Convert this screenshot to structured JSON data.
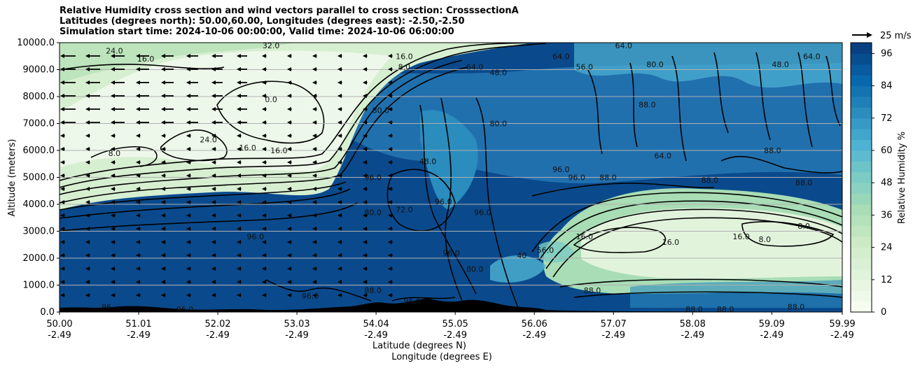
{
  "chart_data": {
    "type": "heatmap",
    "title": [
      "Relative Humidity cross section and wind vectors parallel to cross section: CrosssectionA",
      "Latitudes (degrees north): 50.00,60.00, Longitudes (degrees east): -2.50,-2.50",
      "Simulation start time: 2024-10-06 00:00:00, Valid time: 2024-10-06 06:00:00"
    ],
    "ylabel": "Altitude (meters)",
    "xlabel": [
      "Latitude (degrees N)",
      "Longitude (degrees E)"
    ],
    "ylim": [
      0,
      10000
    ],
    "yticks": [
      "0.0",
      "1000.0",
      "2000.0",
      "3000.0",
      "4000.0",
      "5000.0",
      "6000.0",
      "7000.0",
      "8000.0",
      "9000.0",
      "10000.0"
    ],
    "xlim": [
      50.0,
      59.99
    ],
    "xticks": [
      {
        "lat": "50.00",
        "lon": "-2.49"
      },
      {
        "lat": "51.01",
        "lon": "-2.49"
      },
      {
        "lat": "52.02",
        "lon": "-2.49"
      },
      {
        "lat": "53.03",
        "lon": "-2.49"
      },
      {
        "lat": "54.04",
        "lon": "-2.49"
      },
      {
        "lat": "55.05",
        "lon": "-2.49"
      },
      {
        "lat": "56.06",
        "lon": "-2.49"
      },
      {
        "lat": "57.07",
        "lon": "-2.49"
      },
      {
        "lat": "58.08",
        "lon": "-2.49"
      },
      {
        "lat": "59.09",
        "lon": "-2.49"
      },
      {
        "lat": "59.99",
        "lon": "-2.49"
      }
    ],
    "colorbar": {
      "label": "Relative Humidity %",
      "range": [
        0,
        100
      ],
      "ticks": [
        "0",
        "12",
        "24",
        "36",
        "48",
        "60",
        "72",
        "84",
        "96"
      ],
      "colors": [
        "#f7fcf0",
        "#e0f3db",
        "#ccebc5",
        "#a8ddb5",
        "#7bccc4",
        "#4eb3d3",
        "#2b8cbe",
        "#0868ac",
        "#084081"
      ]
    },
    "wind_key": "25 m/s",
    "contour_labels": [
      {
        "text": "24.0",
        "lat": 50.7,
        "alt": 9700
      },
      {
        "text": "16.0",
        "lat": 51.1,
        "alt": 9400
      },
      {
        "text": "32.0",
        "lat": 52.7,
        "alt": 9900
      },
      {
        "text": "16.0",
        "lat": 54.4,
        "alt": 9500
      },
      {
        "text": "8.0",
        "lat": 54.4,
        "alt": 9100
      },
      {
        "text": "0.0",
        "lat": 52.7,
        "alt": 7900
      },
      {
        "text": "24.0",
        "lat": 51.9,
        "alt": 6400
      },
      {
        "text": "16.0",
        "lat": 52.4,
        "alt": 6100
      },
      {
        "text": "16.0",
        "lat": 52.8,
        "alt": 6000
      },
      {
        "text": "8.0",
        "lat": 50.7,
        "alt": 5900
      },
      {
        "text": "80.0",
        "lat": 54.1,
        "alt": 7500
      },
      {
        "text": "64.0",
        "lat": 55.3,
        "alt": 9100
      },
      {
        "text": "48.0",
        "lat": 55.6,
        "alt": 8900
      },
      {
        "text": "80.0",
        "lat": 55.6,
        "alt": 7000
      },
      {
        "text": "48.0",
        "lat": 54.7,
        "alt": 5600
      },
      {
        "text": "96.0",
        "lat": 54.0,
        "alt": 5000
      },
      {
        "text": "96.0",
        "lat": 54.9,
        "alt": 4100
      },
      {
        "text": "72.0",
        "lat": 54.4,
        "alt": 3800
      },
      {
        "text": "80.0",
        "lat": 54.0,
        "alt": 3700
      },
      {
        "text": "96.0",
        "lat": 55.4,
        "alt": 3700
      },
      {
        "text": "96.0",
        "lat": 56.6,
        "alt": 5000
      },
      {
        "text": "96.0",
        "lat": 56.4,
        "alt": 5300
      },
      {
        "text": "88.0",
        "lat": 57.0,
        "alt": 5000
      },
      {
        "text": "64.0",
        "lat": 57.7,
        "alt": 5800
      },
      {
        "text": "88.0",
        "lat": 57.5,
        "alt": 7700
      },
      {
        "text": "88.0",
        "lat": 58.3,
        "alt": 4900
      },
      {
        "text": "88.0",
        "lat": 59.1,
        "alt": 6000
      },
      {
        "text": "88.0",
        "lat": 59.5,
        "alt": 4800
      },
      {
        "text": "8.0",
        "lat": 59.5,
        "alt": 3200
      },
      {
        "text": "16.0",
        "lat": 58.7,
        "alt": 2800
      },
      {
        "text": "8.0",
        "lat": 59.0,
        "alt": 2700
      },
      {
        "text": "16.0",
        "lat": 57.8,
        "alt": 2600
      },
      {
        "text": "16.0",
        "lat": 56.7,
        "alt": 2800
      },
      {
        "text": "56.0",
        "lat": 56.2,
        "alt": 2300
      },
      {
        "text": "40",
        "lat": 55.9,
        "alt": 2100
      },
      {
        "text": "96.0",
        "lat": 52.5,
        "alt": 2800
      },
      {
        "text": "96.0",
        "lat": 55.0,
        "alt": 2200
      },
      {
        "text": "88.0",
        "lat": 54.0,
        "alt": 800
      },
      {
        "text": "80.0",
        "lat": 55.3,
        "alt": 1600
      },
      {
        "text": "96.0",
        "lat": 54.5,
        "alt": 400
      },
      {
        "text": "88.0",
        "lat": 56.8,
        "alt": 800
      },
      {
        "text": "96",
        "lat": 50.6,
        "alt": 200
      },
      {
        "text": "96.0",
        "lat": 51.6,
        "alt": 100
      },
      {
        "text": "96.0",
        "lat": 53.2,
        "alt": 600
      },
      {
        "text": "88.0",
        "lat": 58.1,
        "alt": 100
      },
      {
        "text": "88.0",
        "lat": 58.5,
        "alt": 100
      },
      {
        "text": "88.0",
        "lat": 59.4,
        "alt": 200
      },
      {
        "text": "64.0",
        "lat": 57.2,
        "alt": 9900
      },
      {
        "text": "64.0",
        "lat": 56.4,
        "alt": 9500
      },
      {
        "text": "56.0",
        "lat": 56.7,
        "alt": 9100
      },
      {
        "text": "64.0",
        "lat": 59.6,
        "alt": 9500
      },
      {
        "text": "80.0",
        "lat": 57.6,
        "alt": 9200
      },
      {
        "text": "48.0",
        "lat": 59.2,
        "alt": 9200
      }
    ]
  }
}
